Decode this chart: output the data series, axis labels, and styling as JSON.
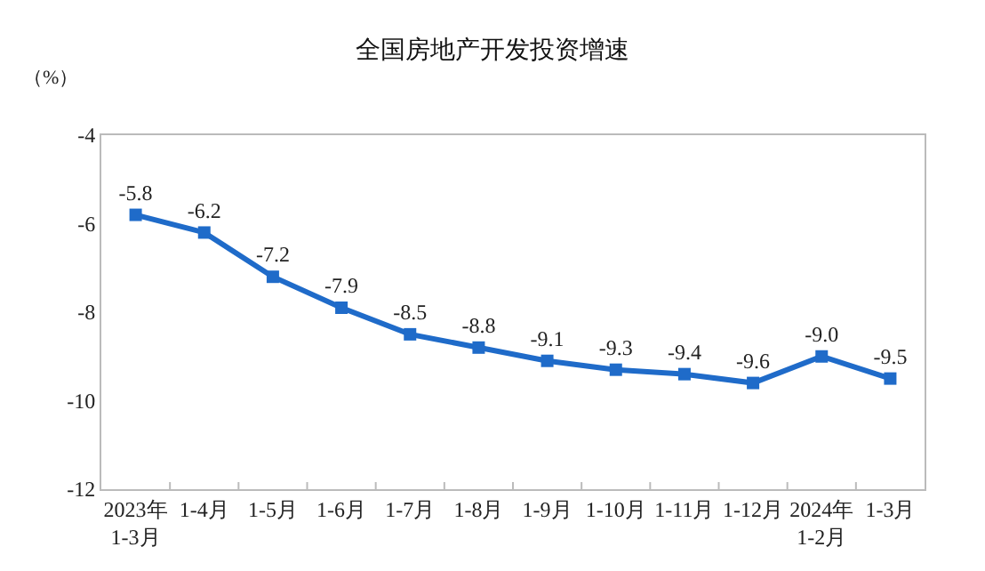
{
  "chart_data": {
    "type": "line",
    "title": "全国房地产开发投资增速",
    "ylabel": "（%）",
    "categories": [
      "2023年\n1-3月",
      "1-4月",
      "1-5月",
      "1-6月",
      "1-7月",
      "1-8月",
      "1-9月",
      "1-10月",
      "1-11月",
      "1-12月",
      "2024年\n1-2月",
      "1-3月"
    ],
    "series": [
      {
        "color": "#1f6bc9",
        "values": [
          -5.8,
          -6.2,
          -7.2,
          -7.9,
          -8.5,
          -8.8,
          -9.1,
          -9.3,
          -9.4,
          -9.6,
          -9.0,
          -9.5
        ],
        "value_labels": [
          "-5.8",
          "-6.2",
          "-7.2",
          "-7.9",
          "-8.5",
          "-8.8",
          "-9.1",
          "-9.3",
          "-9.4",
          "-9.6",
          "-9.0",
          "-9.5"
        ]
      }
    ],
    "ylim": [
      -12,
      -4
    ],
    "yticks": [
      -12,
      -10,
      -8,
      -6,
      -4
    ],
    "marker": "square",
    "line_style": "solid"
  }
}
